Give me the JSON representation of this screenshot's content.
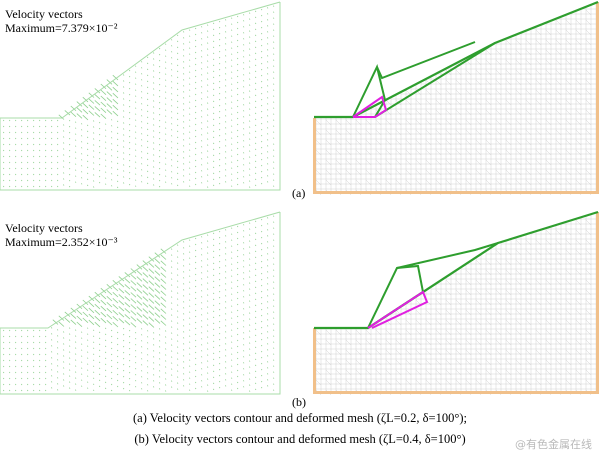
{
  "panel_a": {
    "vectors_title": "Velocity vectors",
    "vectors_maximum": "Maximum=7.379×10⁻²",
    "label": "(a)"
  },
  "panel_b": {
    "vectors_title": "Velocity vectors",
    "vectors_maximum": "Maximum=2.352×10⁻³",
    "label": "(b)"
  },
  "caption": {
    "line_a": "(a) Velocity vectors contour and deformed mesh (ζL=0.2, δ=100°);",
    "line_b": "(b) Velocity vectors contour and deformed mesh (ζL=0.4, δ=100°)"
  },
  "watermark": "@有色金属在线",
  "colors": {
    "vector_green": "#8fd08f",
    "mesh_gray": "#c8c8c8",
    "mechanism_green": "#2e9e2e",
    "slip_magenta": "#e020e0",
    "boundary_orange": "#e8a050"
  }
}
